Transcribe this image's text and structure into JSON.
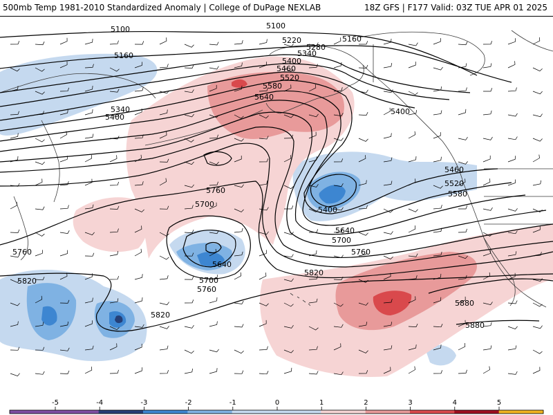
{
  "header": {
    "title": "500mb Temp 1981-2010 Standardized Anomaly | College of DuPage NEXLAB",
    "run_info": "18Z GFS | F177 Valid: 03Z TUE APR 01 2025"
  },
  "colors": {
    "neg5": "#7f4fa3",
    "neg4": "#253f77",
    "neg3": "#3d86d1",
    "neg2": "#7fb2e3",
    "neg1": "#c5d9ef",
    "pos1": "#f6d4d4",
    "pos2": "#e89a9a",
    "pos3": "#d9494c",
    "pos4": "#9e1020",
    "pos5": "#f0b321",
    "contour": "#000000",
    "coast": "#3a3a3a"
  },
  "legend": {
    "ticks": [
      "-5",
      "-4",
      "-3",
      "-2",
      "-1",
      "0",
      "1",
      "2",
      "3",
      "4",
      "5"
    ]
  },
  "contour_labels": [
    "5100",
    "5100",
    "5160",
    "5160",
    "5220",
    "5280",
    "5340",
    "5400",
    "5460",
    "5520",
    "5580",
    "5640",
    "5340",
    "5400",
    "5400",
    "5460",
    "5520",
    "5580",
    "5760",
    "5700",
    "5640",
    "5700",
    "5760",
    "5400",
    "5640",
    "5700",
    "5760",
    "5760",
    "5820",
    "5820",
    "5820",
    "5880",
    "5880"
  ]
}
